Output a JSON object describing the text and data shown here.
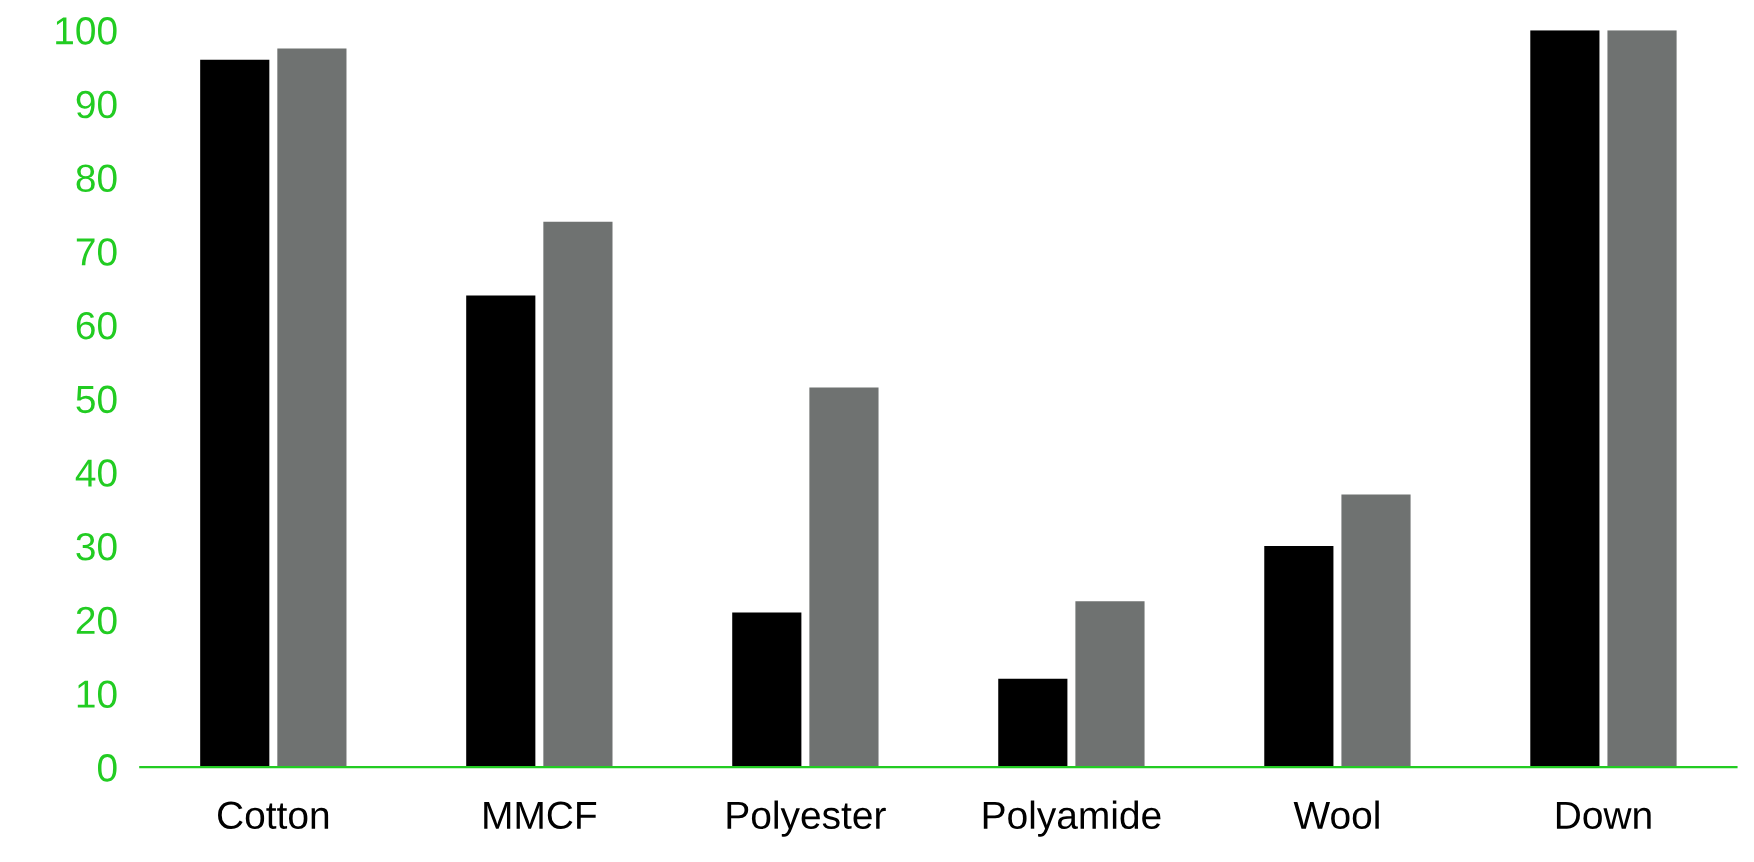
{
  "chart_data": {
    "type": "bar",
    "categories": [
      "Cotton",
      "MMCF",
      "Polyester",
      "Polyamide",
      "Wool",
      "Down"
    ],
    "series": [
      {
        "color": "#000000",
        "values": [
          96,
          64,
          21,
          12,
          30,
          100
        ]
      },
      {
        "color": "#6f7271",
        "values": [
          97.5,
          74,
          51.5,
          22.5,
          37,
          100
        ]
      }
    ],
    "ylim": [
      0,
      100
    ],
    "yticks": [
      0,
      10,
      20,
      30,
      40,
      50,
      60,
      70,
      80,
      90,
      100
    ],
    "grid": false,
    "legend": false
  }
}
